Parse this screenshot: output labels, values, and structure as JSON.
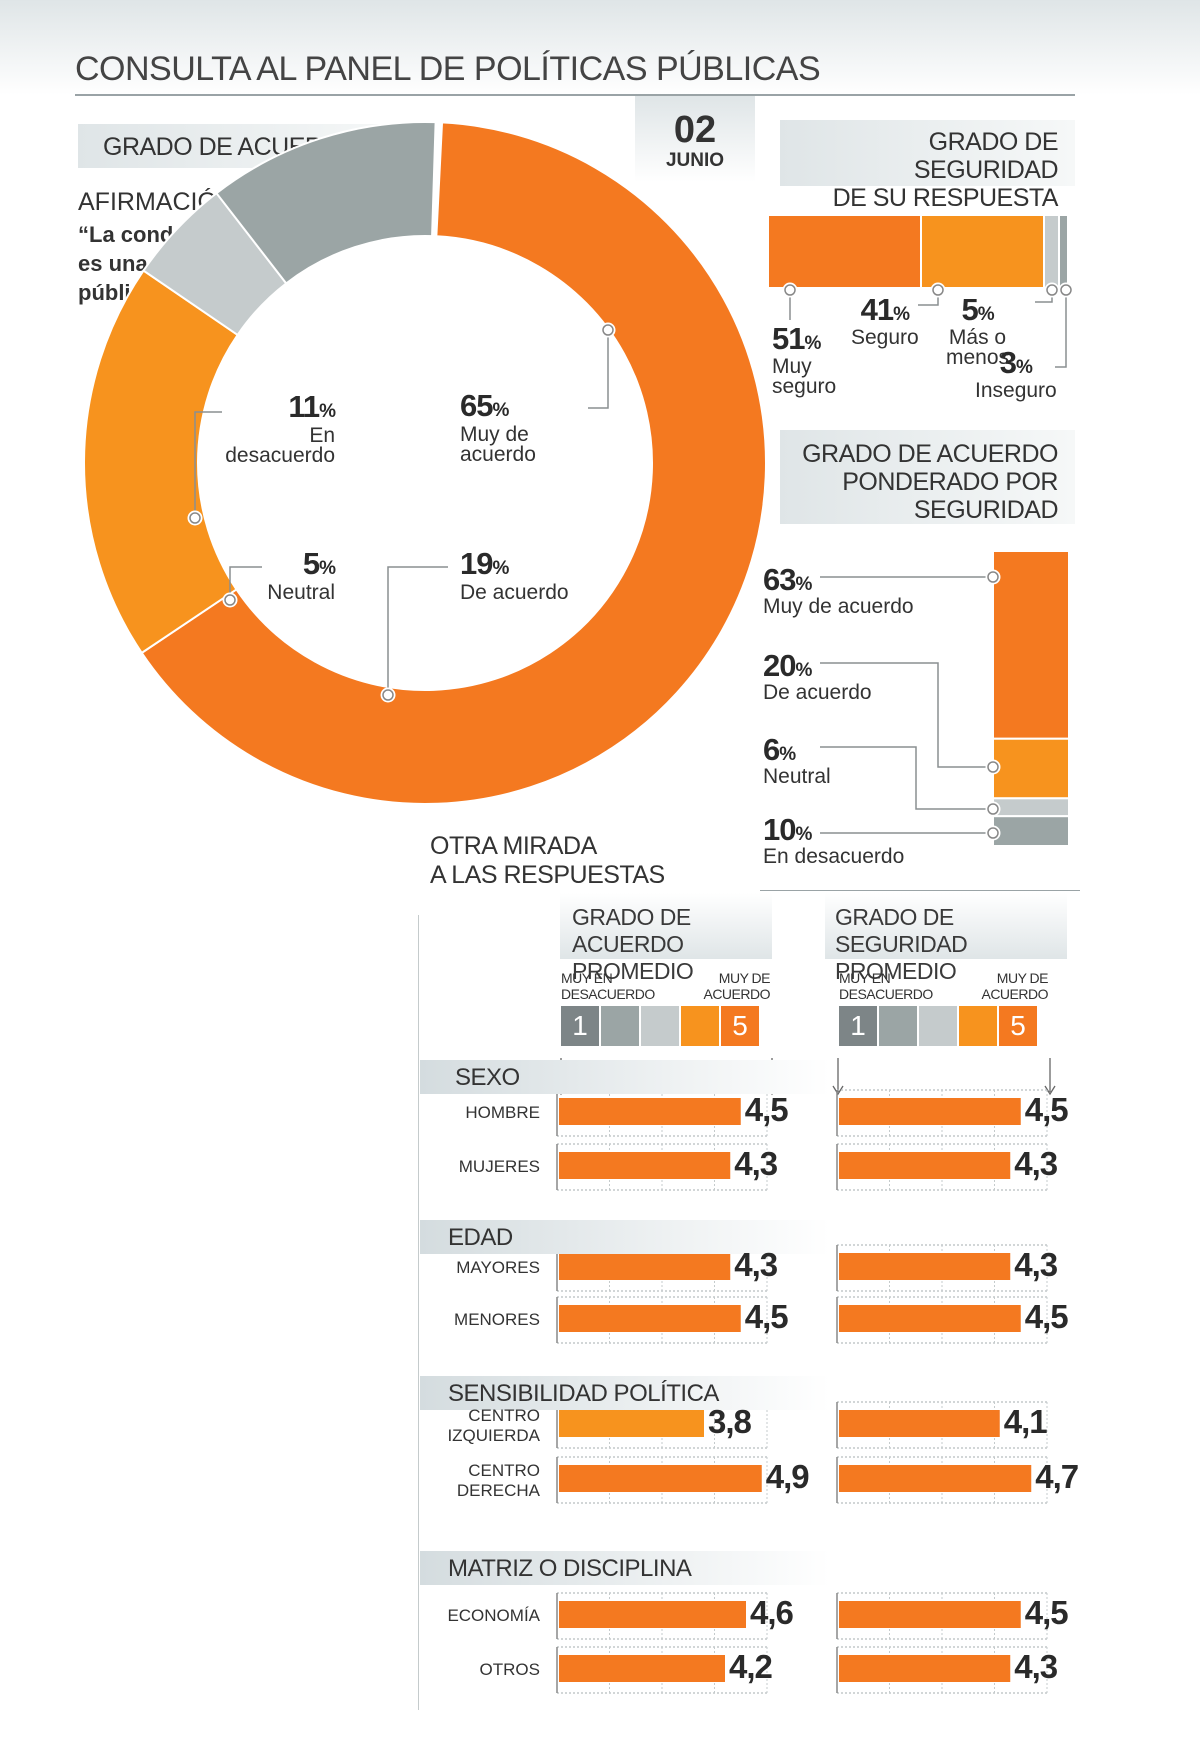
{
  "title": "CONSULTA AL PANEL DE POLÍTICAS PÚBLICAS",
  "date": {
    "day": "02",
    "month": "JUNIO"
  },
  "agreement_section": {
    "header": "GRADO DE ACUERDO",
    "statement_label": "AFIRMACIÓN:",
    "statement": [
      "“La condonación del CAE",
      "es una mala política",
      "pública\"."
    ]
  },
  "certainty_section": {
    "header": [
      "GRADO DE SEGURIDAD",
      "DE SU RESPUESTA"
    ]
  },
  "weighted_section": {
    "header": [
      "GRADO DE ACUERDO",
      "PONDERADO POR",
      "SEGURIDAD"
    ]
  },
  "other_view": {
    "header": [
      "OTRA MIRADA",
      "A LAS RESPUESTAS"
    ],
    "col1_header": [
      "GRADO DE ACUERDO",
      "PROMEDIO"
    ],
    "col2_header": [
      "GRADO DE SEGURIDAD",
      "PROMEDIO"
    ],
    "scale_low": [
      "MUY EN",
      "DESACUERDO"
    ],
    "scale_high": [
      "MUY DE",
      "ACUERDO"
    ],
    "scale_low_num": "1",
    "scale_high_num": "5"
  },
  "colors": {
    "orange": "#f47920",
    "light_orange": "#f7931e",
    "gray_dark": "#9ba5a5",
    "gray_light": "#c5cbcc",
    "gray_box": "#7d8587"
  },
  "chart_data": [
    {
      "type": "pie",
      "variant": "donut",
      "slices": [
        {
          "pct": "65",
          "label": [
            "Muy de",
            "acuerdo"
          ],
          "value": 65,
          "color": "#f47920"
        },
        {
          "pct": "19",
          "label": [
            "De acuerdo"
          ],
          "value": 19,
          "color": "#f7931e"
        },
        {
          "pct": "5",
          "label": [
            "Neutral"
          ],
          "value": 5,
          "color": "#c5cbcc"
        },
        {
          "pct": "11",
          "label": [
            "En",
            "desacuerdo"
          ],
          "value": 11,
          "color": "#9ba5a5"
        }
      ]
    },
    {
      "type": "bar",
      "variant": "stacked-horizontal",
      "segments": [
        {
          "pct": "51",
          "label": [
            "Muy",
            "seguro"
          ],
          "value": 51,
          "color": "#f47920"
        },
        {
          "pct": "41",
          "label": [
            "Seguro"
          ],
          "value": 41,
          "color": "#f7931e"
        },
        {
          "pct": "5",
          "label": [
            "Más o",
            "menos"
          ],
          "value": 5,
          "color": "#c5cbcc"
        },
        {
          "pct": "3",
          "label": [
            "Inseguro"
          ],
          "value": 3,
          "color": "#9ba5a5"
        }
      ]
    },
    {
      "type": "bar",
      "variant": "stacked-vertical",
      "segments": [
        {
          "pct": "63",
          "label": "Muy de acuerdo",
          "value": 63,
          "color": "#f47920"
        },
        {
          "pct": "20",
          "label": "De acuerdo",
          "value": 20,
          "color": "#f7931e"
        },
        {
          "pct": "6",
          "label": "Neutral",
          "value": 6,
          "color": "#c5cbcc"
        },
        {
          "pct": "10",
          "label": "En desacuerdo",
          "value": 10,
          "color": "#9ba5a5"
        }
      ]
    },
    {
      "type": "bar",
      "variant": "grouped-horizontal",
      "xlim": [
        1,
        5
      ],
      "groups": [
        {
          "name": "SEXO",
          "rows": [
            {
              "label": [
                "HOMBRE"
              ],
              "agreement": "4,5",
              "certainty": "4,5",
              "a": 4.5,
              "c": 4.5
            },
            {
              "label": [
                "MUJERES"
              ],
              "agreement": "4,3",
              "certainty": "4,3",
              "a": 4.3,
              "c": 4.3
            }
          ]
        },
        {
          "name": "EDAD",
          "rows": [
            {
              "label": [
                "MAYORES"
              ],
              "agreement": "4,3",
              "certainty": "4,3",
              "a": 4.3,
              "c": 4.3
            },
            {
              "label": [
                "MENORES"
              ],
              "agreement": "4,5",
              "certainty": "4,5",
              "a": 4.5,
              "c": 4.5
            }
          ]
        },
        {
          "name": "SENSIBILIDAD POLÍTICA",
          "rows": [
            {
              "label": [
                "CENTRO",
                "IZQUIERDA"
              ],
              "agreement": "3,8",
              "certainty": "4,1",
              "a": 3.8,
              "c": 4.1
            },
            {
              "label": [
                "CENTRO",
                "DERECHA"
              ],
              "agreement": "4,9",
              "certainty": "4,7",
              "a": 4.9,
              "c": 4.7
            }
          ]
        },
        {
          "name": "MATRIZ O DISCIPLINA",
          "rows": [
            {
              "label": [
                "ECONOMÍA"
              ],
              "agreement": "4,6",
              "certainty": "4,5",
              "a": 4.6,
              "c": 4.5
            },
            {
              "label": [
                "OTROS"
              ],
              "agreement": "4,2",
              "certainty": "4,3",
              "a": 4.2,
              "c": 4.3
            }
          ]
        }
      ]
    }
  ]
}
